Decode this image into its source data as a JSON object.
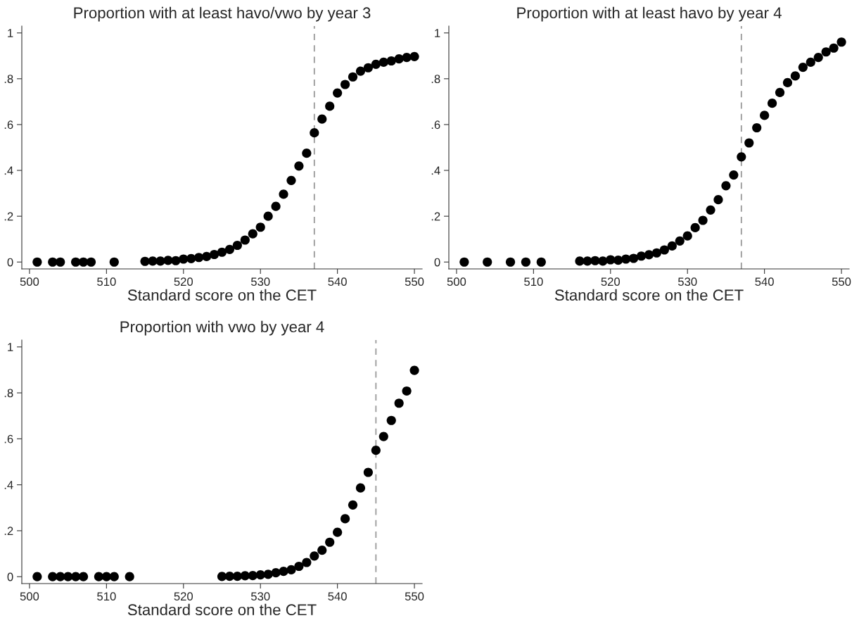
{
  "chart_data": [
    {
      "type": "scatter",
      "title": "Proportion with at least havo/vwo by year 3",
      "xlabel": "Standard score on the CET",
      "x": [
        501,
        503,
        504,
        506,
        507,
        508,
        511,
        515,
        516,
        517,
        518,
        519,
        520,
        521,
        522,
        523,
        524,
        525,
        526,
        527,
        528,
        529,
        530,
        531,
        532,
        533,
        534,
        535,
        536,
        537,
        538,
        539,
        540,
        541,
        542,
        543,
        544,
        545,
        546,
        547,
        548,
        549,
        550
      ],
      "series": [
        {
          "color": "#000000",
          "values": [
            0,
            0,
            0,
            0,
            0,
            0,
            0,
            0.003,
            0.004,
            0.004,
            0.007,
            0.006,
            0.013,
            0.015,
            0.02,
            0.024,
            0.033,
            0.043,
            0.055,
            0.073,
            0.096,
            0.123,
            0.152,
            0.2,
            0.243,
            0.296,
            0.356,
            0.419,
            0.475,
            0.564,
            0.624,
            0.68,
            0.738,
            0.775,
            0.808,
            0.833,
            0.848,
            0.863,
            0.872,
            0.878,
            0.887,
            0.893,
            0.897
          ]
        }
      ],
      "marker": "circle",
      "grid": false,
      "legend": false,
      "xlim": [
        499,
        551
      ],
      "xticks": [
        500,
        510,
        520,
        530,
        540,
        550
      ],
      "ylim": [
        -0.03,
        1.03
      ],
      "yticks": [
        0,
        {
          "value": 0.2,
          "label": ".2"
        },
        {
          "value": 0.4,
          "label": ".4"
        },
        {
          "value": 0.6,
          "label": ".6"
        },
        {
          "value": 0.8,
          "label": ".8"
        },
        1
      ],
      "ref_lines": [
        {
          "axis": "x",
          "value": 537,
          "color": "#999999",
          "line_style": "dashed"
        }
      ]
    },
    {
      "type": "scatter",
      "title": "Proportion with at least havo by year 4",
      "xlabel": "Standard score on the CET",
      "x": [
        501,
        504,
        507,
        509,
        511,
        516,
        517,
        518,
        519,
        520,
        521,
        522,
        523,
        524,
        525,
        526,
        527,
        528,
        529,
        530,
        531,
        532,
        533,
        534,
        535,
        536,
        537,
        538,
        539,
        540,
        541,
        542,
        543,
        544,
        545,
        546,
        547,
        548,
        549,
        550
      ],
      "series": [
        {
          "color": "#000000",
          "values": [
            0,
            0,
            0,
            0,
            0,
            0.004,
            0.004,
            0.006,
            0.004,
            0.01,
            0.008,
            0.013,
            0.016,
            0.026,
            0.032,
            0.04,
            0.053,
            0.07,
            0.092,
            0.114,
            0.15,
            0.182,
            0.227,
            0.272,
            0.333,
            0.38,
            0.459,
            0.52,
            0.586,
            0.64,
            0.693,
            0.74,
            0.783,
            0.812,
            0.85,
            0.872,
            0.893,
            0.917,
            0.934,
            0.96
          ]
        }
      ],
      "marker": "circle",
      "grid": false,
      "legend": false,
      "xlim": [
        499,
        551
      ],
      "xticks": [
        500,
        510,
        520,
        530,
        540,
        550
      ],
      "ylim": [
        -0.03,
        1.03
      ],
      "yticks": [
        0,
        {
          "value": 0.2,
          "label": ".2"
        },
        {
          "value": 0.4,
          "label": ".4"
        },
        {
          "value": 0.6,
          "label": ".6"
        },
        {
          "value": 0.8,
          "label": ".8"
        },
        1
      ],
      "ref_lines": [
        {
          "axis": "x",
          "value": 537,
          "color": "#999999",
          "line_style": "dashed"
        }
      ]
    },
    {
      "type": "scatter",
      "title": "Proportion with vwo by year 4",
      "xlabel": "Standard score on the CET",
      "x": [
        501,
        503,
        504,
        505,
        506,
        507,
        509,
        510,
        511,
        513,
        525,
        526,
        527,
        528,
        529,
        530,
        531,
        532,
        533,
        534,
        535,
        536,
        537,
        538,
        539,
        540,
        541,
        542,
        543,
        544,
        545,
        546,
        547,
        548,
        549,
        550
      ],
      "series": [
        {
          "color": "#000000",
          "values": [
            0,
            0,
            0,
            0,
            0,
            0,
            0,
            0,
            0,
            0,
            0.001,
            0.002,
            0.002,
            0.004,
            0.005,
            0.008,
            0.01,
            0.017,
            0.023,
            0.03,
            0.045,
            0.062,
            0.09,
            0.115,
            0.15,
            0.193,
            0.252,
            0.312,
            0.386,
            0.454,
            0.55,
            0.61,
            0.68,
            0.755,
            0.808,
            0.898
          ]
        }
      ],
      "marker": "circle",
      "grid": false,
      "legend": false,
      "xlim": [
        499,
        551
      ],
      "xticks": [
        500,
        510,
        520,
        530,
        540,
        550
      ],
      "ylim": [
        -0.03,
        1.03
      ],
      "yticks": [
        0,
        {
          "value": 0.2,
          "label": ".2"
        },
        {
          "value": 0.4,
          "label": ".4"
        },
        {
          "value": 0.6,
          "label": ".6"
        },
        {
          "value": 0.8,
          "label": ".8"
        },
        1
      ],
      "ref_lines": [
        {
          "axis": "x",
          "value": 545,
          "color": "#999999",
          "line_style": "dashed"
        }
      ]
    }
  ]
}
